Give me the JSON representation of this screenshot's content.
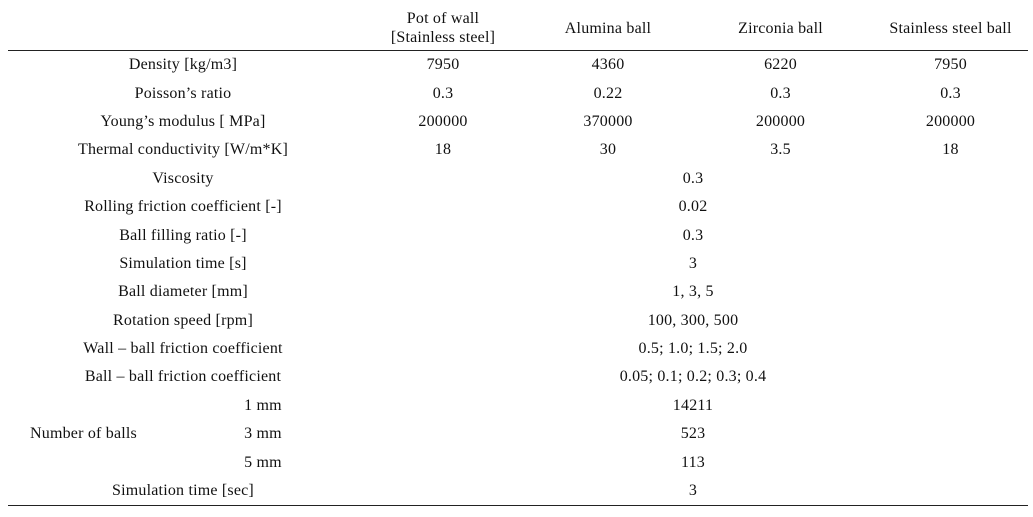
{
  "header": {
    "col0": "",
    "pot_line1": "Pot of wall",
    "pot_line2": "[Stainless steel]",
    "alumina": "Alumina ball",
    "zirconia": "Zirconia ball",
    "stainless": "Stainless steel ball"
  },
  "rows": {
    "density": {
      "label": "Density [kg/m3]",
      "v1": "7950",
      "v2": "4360",
      "v3": "6220",
      "v4": "7950"
    },
    "poisson": {
      "label": "Poisson’s ratio",
      "v1": "0.3",
      "v2": "0.22",
      "v3": "0.3",
      "v4": "0.3"
    },
    "young": {
      "label": "Young’s modulus [ MPa]",
      "v1": "200000",
      "v2": "370000",
      "v3": "200000",
      "v4": "200000"
    },
    "thermal": {
      "label": "Thermal conductivity [W/m*K]",
      "v1": "18",
      "v2": "30",
      "v3": "3.5",
      "v4": "18"
    },
    "viscosity": {
      "label": "Viscosity",
      "value": "0.3"
    },
    "rolling": {
      "label": "Rolling friction coefficient [-]",
      "value": "0.02"
    },
    "filling": {
      "label": "Ball filling ratio [-]",
      "value": "0.3"
    },
    "simtime": {
      "label": "Simulation time [s]",
      "value": "3"
    },
    "diameter": {
      "label": "Ball diameter [mm]",
      "value": "1, 3, 5"
    },
    "rotation": {
      "label": "Rotation speed [rpm]",
      "value": "100, 300, 500"
    },
    "wallball": {
      "label": "Wall – ball friction coefficient",
      "value": "0.5; 1.0; 1.5; 2.0"
    },
    "ballball": {
      "label": "Ball – ball friction coefficient",
      "value": "0.05; 0.1; 0.2; 0.3; 0.4"
    },
    "nballs": {
      "group_label": "Number of balls",
      "sub1": {
        "label": "1 mm",
        "value": "14211"
      },
      "sub3": {
        "label": "3 mm",
        "value": "523"
      },
      "sub5": {
        "label": "5 mm",
        "value": "113"
      }
    },
    "simtime_sec": {
      "label": "Simulation time [sec]",
      "value": "3"
    }
  }
}
